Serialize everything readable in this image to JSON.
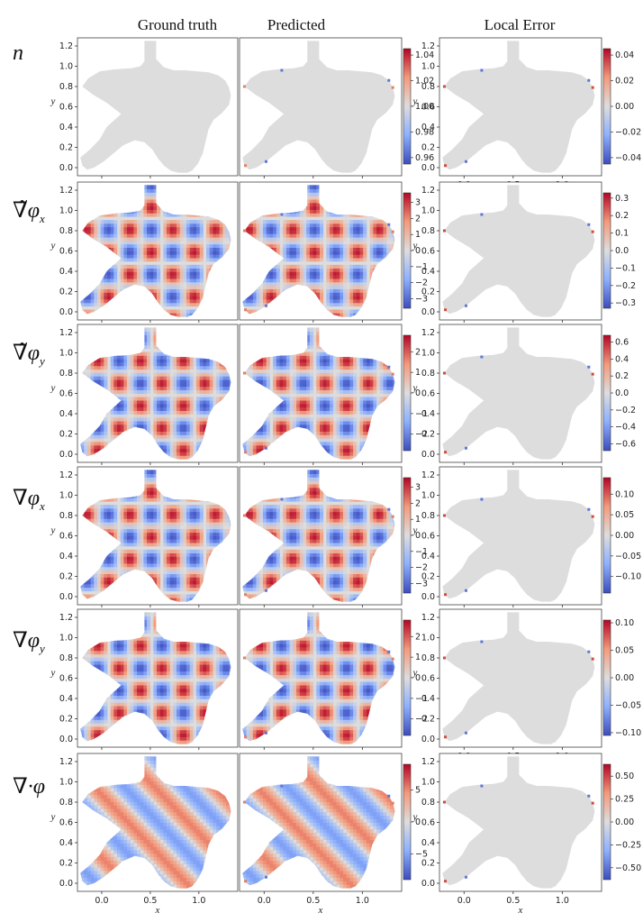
{
  "column_titles": [
    "Ground truth",
    "Predicted",
    "Local Error"
  ],
  "row_labels": [
    "n",
    "∇̃φx",
    "∇̃φy",
    "∇φx",
    "∇φy",
    "∇·φ"
  ],
  "row_label_parts": [
    {
      "sym": "n",
      "sub": ""
    },
    {
      "sym": "∇̃φ",
      "sub": "x"
    },
    {
      "sym": "∇̃φ",
      "sub": "y"
    },
    {
      "sym": "∇φ",
      "sub": "x"
    },
    {
      "sym": "∇φ",
      "sub": "y"
    },
    {
      "sym": "∇·φ",
      "sub": ""
    }
  ],
  "colors": {
    "low": "#3b4cc0",
    "mid": "#dddddd",
    "high": "#b40426",
    "background": "#ffffff"
  },
  "chart_data": {
    "type": "heatmap",
    "domain_shape": "irregular polygon with notch on top",
    "x_ticks": [
      "0.0",
      "0.5",
      "1.0"
    ],
    "y_ticks": [
      "0.0",
      "0.2",
      "0.4",
      "0.6",
      "0.8",
      "1.0",
      "1.2"
    ],
    "xlabel": "x",
    "ylabel": "y",
    "xlim": [
      -0.25,
      1.4
    ],
    "ylim": [
      -0.08,
      1.28
    ],
    "rows": [
      {
        "label": "n",
        "field": "const",
        "colorbar_main": {
          "range": [
            0.955,
            1.045
          ],
          "ticks": [
            "1.04",
            "1.02",
            "1.00",
            "0.98",
            "0.96"
          ]
        },
        "colorbar_error": {
          "range": [
            -0.045,
            0.045
          ],
          "ticks": [
            "0.04",
            "0.02",
            "0.00",
            "−0.02",
            "−0.04"
          ]
        }
      },
      {
        "label": "∇̃φx",
        "field": "gx",
        "colorbar_main": {
          "range": [
            -3.6,
            3.6
          ],
          "ticks": [
            "3",
            "2",
            "1",
            "0",
            "−1",
            "−2",
            "−3"
          ]
        },
        "colorbar_error": {
          "range": [
            -0.33,
            0.33
          ],
          "ticks": [
            "0.3",
            "0.2",
            "0.1",
            "0.0",
            "−0.1",
            "−0.2",
            "−0.3"
          ]
        }
      },
      {
        "label": "∇̃φy",
        "field": "gy",
        "colorbar_main": {
          "range": [
            -2.8,
            2.8
          ],
          "ticks": [
            "2",
            "1",
            "0",
            "−1",
            "−2"
          ]
        },
        "colorbar_error": {
          "range": [
            -0.68,
            0.68
          ],
          "ticks": [
            "0.6",
            "0.4",
            "0.2",
            "0.0",
            "−0.2",
            "−0.4",
            "−0.6"
          ]
        }
      },
      {
        "label": "∇φx",
        "field": "gx",
        "colorbar_main": {
          "range": [
            -3.6,
            3.6
          ],
          "ticks": [
            "3",
            "2",
            "1",
            "0",
            "−1",
            "−2",
            "−3"
          ]
        },
        "colorbar_error": {
          "range": [
            -0.14,
            0.14
          ],
          "ticks": [
            "0.10",
            "0.05",
            "0.00",
            "−0.05",
            "−0.10"
          ]
        }
      },
      {
        "label": "∇φy",
        "field": "gy",
        "colorbar_main": {
          "range": [
            -2.8,
            2.8
          ],
          "ticks": [
            "2",
            "1",
            "0",
            "−1",
            "−2"
          ]
        },
        "colorbar_error": {
          "range": [
            -0.105,
            0.105
          ],
          "ticks": [
            "0.10",
            "0.05",
            "0.00",
            "−0.05",
            "−0.10"
          ]
        }
      },
      {
        "label": "∇·φ",
        "field": "div",
        "colorbar_main": {
          "range": [
            -9,
            9
          ],
          "ticks": [
            "5",
            "0",
            "−5"
          ]
        },
        "colorbar_error": {
          "range": [
            -0.63,
            0.63
          ],
          "ticks": [
            "0.50",
            "0.25",
            "0.00",
            "−0.25",
            "−0.50"
          ]
        }
      }
    ]
  }
}
